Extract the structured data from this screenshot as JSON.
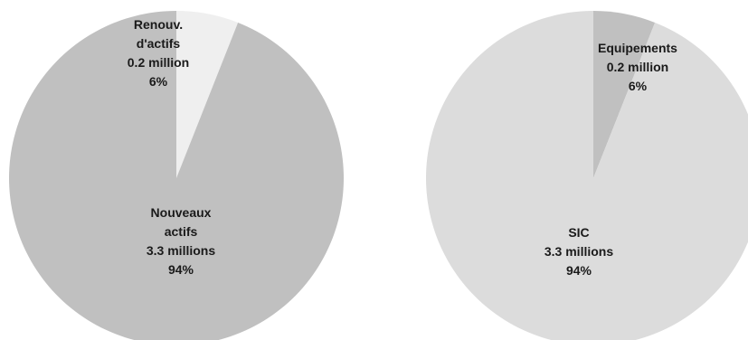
{
  "chart_data": [
    {
      "type": "pie",
      "slices": [
        {
          "label_lines": [
            "Renouv.",
            "d'actifs"
          ],
          "amount_text": "0.2 million",
          "percent_text": "6%",
          "value": 6,
          "color": "#efefef"
        },
        {
          "label_lines": [
            "Nouveaux",
            "actifs"
          ],
          "amount_text": "3.3 millions",
          "percent_text": "94%",
          "value": 94,
          "color": "#c0c0c0"
        }
      ]
    },
    {
      "type": "pie",
      "slices": [
        {
          "label_lines": [
            "Equipements"
          ],
          "amount_text": "0.2 million",
          "percent_text": "6%",
          "value": 6,
          "color": "#c0c0c0"
        },
        {
          "label_lines": [
            "SIC"
          ],
          "amount_text": "3.3 millions",
          "percent_text": "94%",
          "value": 94,
          "color": "#dcdcdc"
        }
      ]
    }
  ]
}
